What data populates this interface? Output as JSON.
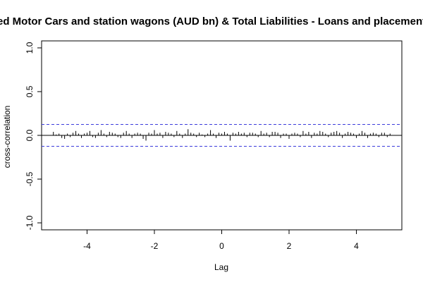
{
  "chart_data": {
    "type": "bar",
    "subtype": "cross-correlation",
    "title": "ed Motor Cars and station wagons (AUD bn) & Total Liabilities - Loans and placements (A",
    "xlabel": "Lag",
    "ylabel": "cross-correlation",
    "xlim": [
      -5.35,
      5.35
    ],
    "ylim": [
      -1.08,
      1.08
    ],
    "x_ticks": [
      -4,
      -2,
      0,
      2,
      4
    ],
    "y_ticks": [
      -1.0,
      -0.5,
      0.0,
      0.5,
      1.0
    ],
    "x_tick_labels": [
      "-4",
      "-2",
      "0",
      "2",
      "4"
    ],
    "y_tick_labels": [
      "-1.0",
      "-0.5",
      "0.0",
      "0.5",
      "1.0"
    ],
    "confidence_bounds": [
      0.125,
      -0.125
    ],
    "lag_step": 0.0833333,
    "values": [
      0.04,
      0.01,
      0.02,
      -0.03,
      -0.04,
      0.02,
      -0.02,
      0.03,
      0.05,
      0.02,
      -0.03,
      0.02,
      0.03,
      0.05,
      -0.02,
      -0.03,
      0.03,
      0.06,
      0.02,
      -0.02,
      0.04,
      0.03,
      0.02,
      -0.02,
      -0.03,
      0.03,
      0.05,
      0.02,
      -0.03,
      0.02,
      0.03,
      0.02,
      -0.04,
      -0.06,
      0.03,
      0.02,
      0.06,
      0.02,
      0.03,
      -0.03,
      0.04,
      0.03,
      0.02,
      -0.02,
      0.05,
      0.02,
      -0.03,
      0.02,
      0.07,
      0.03,
      0.02,
      -0.02,
      0.03,
      0.01,
      -0.02,
      0.02,
      0.06,
      0.02,
      -0.03,
      0.03,
      0.02,
      0.04,
      0.02,
      -0.06,
      0.03,
      0.02,
      0.04,
      0.02,
      0.03,
      -0.02,
      0.03,
      0.03,
      0.02,
      -0.02,
      0.05,
      0.02,
      0.03,
      -0.02,
      0.04,
      0.04,
      0.03,
      -0.03,
      0.02,
      0.02,
      -0.04,
      0.02,
      0.03,
      0.02,
      -0.02,
      0.05,
      0.02,
      0.04,
      -0.03,
      0.03,
      0.02,
      0.05,
      0.04,
      0.02,
      -0.02,
      0.03,
      0.04,
      0.05,
      0.03,
      -0.03,
      0.02,
      0.04,
      0.03,
      0.02,
      -0.03,
      0.02,
      0.05,
      0.03,
      -0.03,
      0.02,
      0.03,
      0.02,
      -0.02,
      0.03,
      0.03,
      -0.02,
      0.02
    ]
  }
}
